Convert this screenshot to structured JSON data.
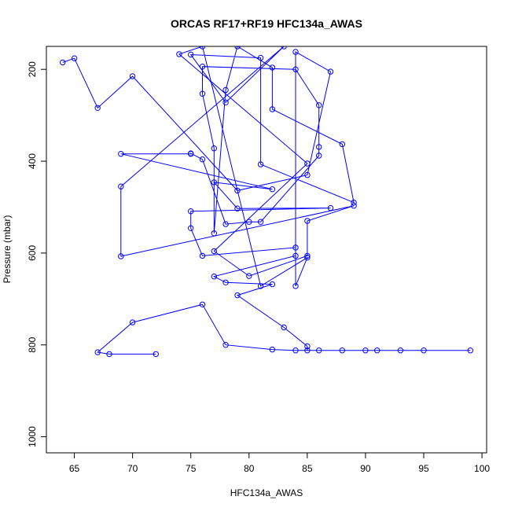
{
  "chart_data": {
    "type": "line",
    "title": "ORCAS RF17+RF19 HFC134a_AWAS",
    "xlabel": "HFC134a_AWAS",
    "ylabel": "Pressure (mbar)",
    "xlim": [
      62.6,
      100.4
    ],
    "ylim": [
      1035,
      150
    ],
    "y_reversed": true,
    "x_ticks": [
      "65",
      "70",
      "75",
      "80",
      "85",
      "90",
      "95",
      "100"
    ],
    "y_ticks": [
      "200",
      "400",
      "600",
      "800",
      "1000"
    ],
    "x_tick_values": [
      65,
      70,
      75,
      80,
      85,
      90,
      95,
      100
    ],
    "y_tick_values": [
      200,
      400,
      600,
      800,
      1000
    ],
    "grid": false,
    "legend": "none",
    "series": [
      {
        "color": "#0000ff",
        "marker": "open-circle",
        "points": [
          [
            72,
            820
          ],
          [
            68,
            820
          ],
          [
            67,
            816
          ],
          [
            70,
            751
          ],
          [
            76,
            712
          ],
          [
            78,
            800
          ],
          [
            82,
            810
          ],
          [
            84,
            812
          ],
          [
            86,
            812
          ],
          [
            88,
            812
          ],
          [
            90,
            812
          ],
          [
            91,
            812
          ],
          [
            93,
            812
          ],
          [
            95,
            812
          ],
          [
            99,
            812
          ],
          [
            85,
            812
          ],
          [
            85,
            803
          ],
          [
            83,
            762
          ],
          [
            79,
            692
          ],
          [
            82,
            668
          ],
          [
            78,
            664
          ],
          [
            77,
            651
          ],
          [
            84,
            606
          ],
          [
            84,
            588
          ],
          [
            76,
            606
          ],
          [
            75,
            546
          ],
          [
            75,
            509
          ],
          [
            87,
            502
          ],
          [
            79,
            503
          ],
          [
            77,
            446
          ],
          [
            82,
            461
          ],
          [
            69,
            384
          ],
          [
            75,
            384
          ],
          [
            75,
            383
          ],
          [
            76,
            396
          ],
          [
            78,
            537
          ],
          [
            80,
            532
          ],
          [
            81,
            532
          ],
          [
            86,
            388
          ],
          [
            86,
            369
          ],
          [
            86,
            278
          ],
          [
            84,
            200
          ],
          [
            76,
            194
          ],
          [
            76,
            253
          ],
          [
            77,
            372
          ],
          [
            77,
            557
          ],
          [
            78,
            245
          ],
          [
            79,
            150
          ],
          [
            82,
            196
          ],
          [
            82,
            287
          ],
          [
            88,
            363
          ],
          [
            89,
            490
          ],
          [
            81,
            407
          ],
          [
            81,
            175
          ],
          [
            75,
            168
          ],
          [
            78,
            272
          ],
          [
            83,
            150
          ],
          [
            69,
            455
          ],
          [
            69,
            607
          ],
          [
            89,
            497
          ],
          [
            85,
            530
          ],
          [
            85,
            606
          ],
          [
            80,
            650
          ],
          [
            77,
            596
          ],
          [
            85,
            405
          ],
          [
            74,
            167
          ],
          [
            76,
            150
          ],
          [
            81,
            672
          ],
          [
            85,
            610
          ],
          [
            84,
            672
          ],
          [
            84,
            162
          ],
          [
            87,
            205
          ],
          [
            85,
            430
          ],
          [
            79,
            464
          ],
          [
            70,
            215
          ],
          [
            67,
            284
          ],
          [
            65,
            176
          ],
          [
            64,
            185
          ]
        ]
      }
    ]
  }
}
